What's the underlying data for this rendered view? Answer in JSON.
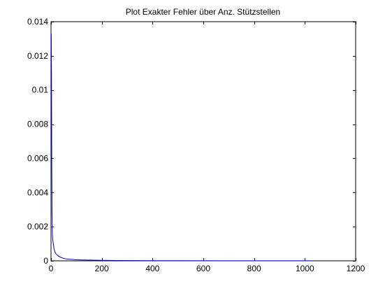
{
  "chart_data": {
    "type": "line",
    "title": "Plot Exakter Fehler über Anz. Stützstellen",
    "xlabel": "",
    "ylabel": "",
    "xlim": [
      0,
      1200
    ],
    "ylim": [
      0,
      0.014
    ],
    "x_ticks": [
      0,
      200,
      400,
      600,
      800,
      1000,
      1200
    ],
    "y_ticks": [
      0,
      0.002,
      0.004,
      0.006,
      0.008,
      0.01,
      0.012,
      0.014
    ],
    "x_tick_labels": [
      "0",
      "200",
      "400",
      "600",
      "800",
      "1000",
      "1200"
    ],
    "y_tick_labels": [
      "0",
      "0.002",
      "0.004",
      "0.006",
      "0.008",
      "0.01",
      "0.012",
      "0.014"
    ],
    "grid": false,
    "legend": "none",
    "series": [
      {
        "color": "#0000ff",
        "x": [
          1,
          2,
          3,
          4,
          5,
          6,
          8,
          10,
          12,
          16,
          20,
          32,
          48,
          64,
          100,
          128,
          200,
          256,
          400,
          512,
          700,
          800,
          1024
        ],
        "y": [
          0.0133,
          0.0108,
          0.0058,
          0.0029,
          0.0019,
          0.0014,
          0.0011,
          0.0009,
          0.0007,
          0.0005,
          0.0004,
          0.00025,
          0.00015,
          0.0001,
          6e-05,
          5e-05,
          3e-05,
          2e-05,
          1e-05,
          8e-06,
          5e-06,
          4e-06,
          3e-06
        ]
      }
    ]
  }
}
